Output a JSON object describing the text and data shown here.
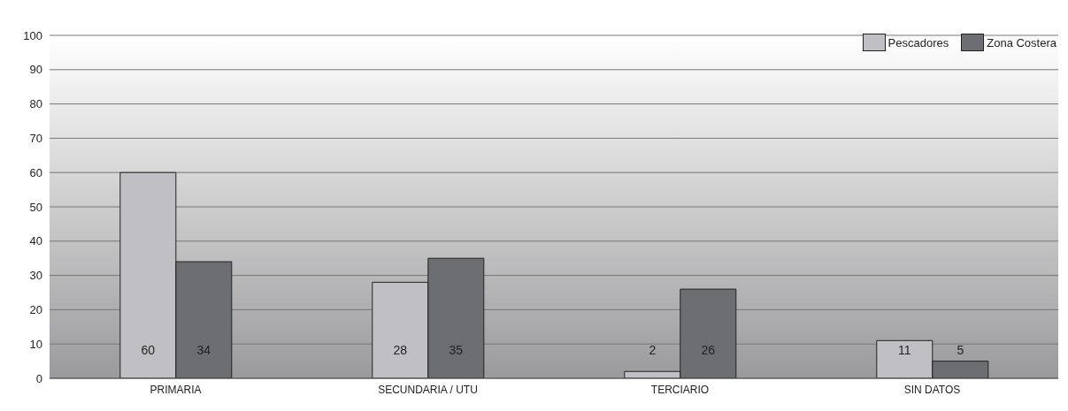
{
  "chart_data": {
    "type": "bar",
    "categories": [
      "PRIMARIA",
      "SECUNDARIA / UTU",
      "TERCIARIO",
      "SIN DATOS"
    ],
    "series": [
      {
        "name": "Pescadores",
        "color": "#c0c0c4",
        "values": [
          60,
          28,
          2,
          11
        ]
      },
      {
        "name": "Zona Costera",
        "color": "#6d6e72",
        "values": [
          34,
          35,
          26,
          5
        ]
      }
    ],
    "ylim": [
      0,
      100
    ],
    "yticks": [
      0,
      10,
      20,
      30,
      40,
      50,
      60,
      70,
      80,
      90,
      100
    ],
    "grid": "y",
    "legend": "top right",
    "data_labels": true
  }
}
